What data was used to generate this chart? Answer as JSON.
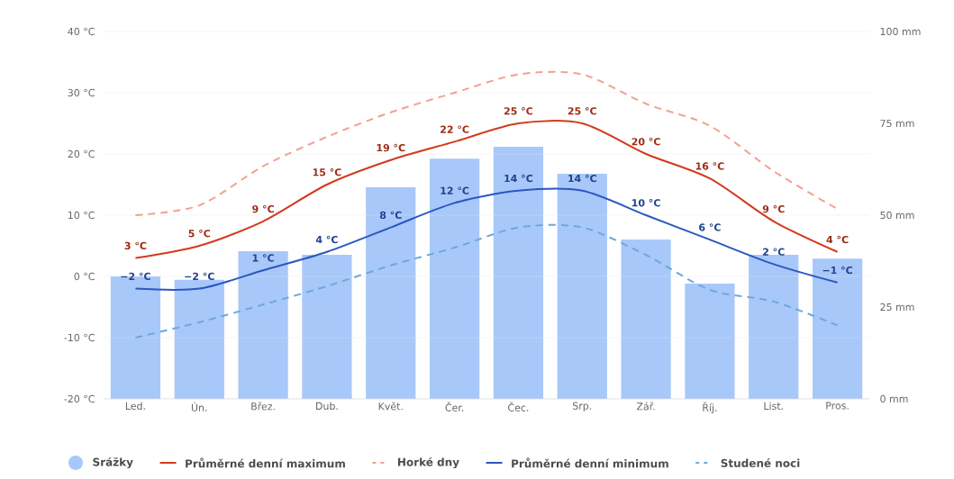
{
  "chart_data": {
    "type": "line",
    "categories": [
      "Led.",
      "Ún.",
      "Břez.",
      "Dub.",
      "Květ.",
      "Čer.",
      "Čec.",
      "Srp.",
      "Zář.",
      "Říj.",
      "List.",
      "Pros."
    ],
    "series": [
      {
        "name": "Srážky",
        "type": "bar",
        "axis": "y2",
        "color": "#a8c8fa",
        "values": [
          33.3,
          32.4,
          40.2,
          39.2,
          57.6,
          65.4,
          68.6,
          61.3,
          43.4,
          31.4,
          39.2,
          38.2
        ]
      },
      {
        "name": "Průměrné denní maximum",
        "line_style": "solid",
        "color": "#d33a1c",
        "values": [
          3,
          5,
          9,
          15,
          19,
          22,
          25,
          25,
          20,
          16,
          9,
          4
        ],
        "value_labels": [
          "3 °C",
          "5 °C",
          "9 °C",
          "15 °C",
          "19 °C",
          "22 °C",
          "25 °C",
          "25 °C",
          "20 °C",
          "16 °C",
          "9 °C",
          "4 °C"
        ]
      },
      {
        "name": "Horké dny",
        "line_style": "dashed",
        "color": "#f4a08f",
        "values": [
          10,
          11.6,
          18,
          22.8,
          26.8,
          30,
          33,
          33,
          28.2,
          24.6,
          17.2,
          11
        ]
      },
      {
        "name": "Průměrné denní minimum",
        "line_style": "solid",
        "color": "#2a58c0",
        "values": [
          -2,
          -2,
          1,
          4,
          8,
          12,
          14,
          14,
          10,
          6,
          2,
          -1
        ],
        "value_labels": [
          "−2 °C",
          "−2 °C",
          "1 °C",
          "4 °C",
          "8 °C",
          "12 °C",
          "14 °C",
          "14 °C",
          "10 °C",
          "6 °C",
          "2 °C",
          "−1 °C"
        ]
      },
      {
        "name": "Studené noci",
        "line_style": "dashed",
        "color": "#6fa8d8",
        "values": [
          -10,
          -7.5,
          -4.6,
          -1.6,
          1.8,
          4.7,
          8,
          8,
          3.5,
          -2.2,
          -4.1,
          -8
        ]
      }
    ],
    "ylim": [
      -20,
      40
    ],
    "yticks": [
      {
        "value": -20,
        "label": "-20 °C"
      },
      {
        "value": -10,
        "label": "-10 °C"
      },
      {
        "value": 0,
        "label": "0 °C"
      },
      {
        "value": 10,
        "label": "10 °C"
      },
      {
        "value": 20,
        "label": "20 °C"
      },
      {
        "value": 30,
        "label": "30 °C"
      },
      {
        "value": 40,
        "label": "40 °C"
      }
    ],
    "y2lim": [
      0,
      100
    ],
    "y2ticks": [
      {
        "value": 0,
        "label": "0 mm"
      },
      {
        "value": 25,
        "label": "25 mm"
      },
      {
        "value": 50,
        "label": "50 mm"
      },
      {
        "value": 75,
        "label": "75 mm"
      },
      {
        "value": 100,
        "label": "100 mm"
      }
    ],
    "grid": "y",
    "legend": "bottom",
    "marker": "none"
  }
}
